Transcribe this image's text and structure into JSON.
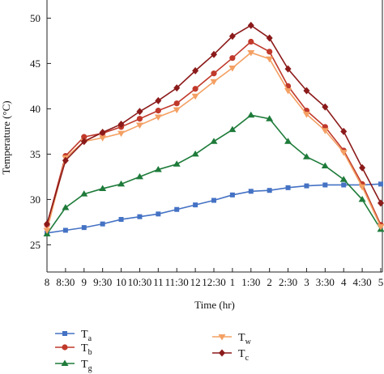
{
  "chart_data": {
    "type": "line",
    "xlabel": "Time (hr)",
    "ylabel": "Temperature (°C)",
    "ylim": [
      22,
      52
    ],
    "yticks": [
      25,
      30,
      35,
      40,
      45,
      50
    ],
    "grid": false,
    "legend_position": "bottom",
    "categories": [
      "8",
      "8:30",
      "9",
      "9:30",
      "10",
      "10:30",
      "11",
      "11:30",
      "12",
      "12:30",
      "1",
      "1:30",
      "2",
      "2:30",
      "3",
      "3:30",
      "4",
      "4:30",
      "5"
    ],
    "series": [
      {
        "name": "T",
        "subscript": "a",
        "color": "#4472c4",
        "marker": "square",
        "values": [
          26.3,
          26.6,
          26.9,
          27.3,
          27.8,
          28.1,
          28.4,
          28.9,
          29.4,
          29.9,
          30.5,
          30.9,
          31.0,
          31.3,
          31.5,
          31.6,
          31.6,
          31.6,
          31.7
        ]
      },
      {
        "name": "T",
        "subscript": "b",
        "color": "#c0392b",
        "marker": "circle",
        "values": [
          27.2,
          34.8,
          36.9,
          37.3,
          38.0,
          38.9,
          39.8,
          40.6,
          42.2,
          43.9,
          45.6,
          47.4,
          46.3,
          42.5,
          39.8,
          38.0,
          35.4,
          31.7,
          27.2
        ]
      },
      {
        "name": "T",
        "subscript": "g",
        "color": "#1e7b3a",
        "marker": "triangle-up",
        "values": [
          26.2,
          29.1,
          30.6,
          31.2,
          31.7,
          32.5,
          33.3,
          33.9,
          35.0,
          36.4,
          37.7,
          39.3,
          38.9,
          36.4,
          34.7,
          33.7,
          32.2,
          30.0,
          26.7
        ]
      },
      {
        "name": "T",
        "subscript": "w",
        "color": "#f4a063",
        "marker": "triangle-down",
        "values": [
          26.6,
          34.6,
          36.4,
          36.8,
          37.3,
          38.2,
          39.1,
          39.9,
          41.4,
          43.0,
          44.5,
          46.2,
          45.5,
          42.0,
          39.4,
          37.6,
          35.2,
          31.4,
          27.0
        ]
      },
      {
        "name": "T",
        "subscript": "c",
        "color": "#8b1a1a",
        "marker": "diamond",
        "values": [
          27.3,
          34.3,
          36.4,
          37.4,
          38.3,
          39.7,
          40.9,
          42.3,
          44.2,
          46.0,
          48.0,
          49.2,
          47.8,
          44.4,
          42.0,
          40.2,
          37.5,
          33.5,
          29.6
        ]
      }
    ]
  }
}
